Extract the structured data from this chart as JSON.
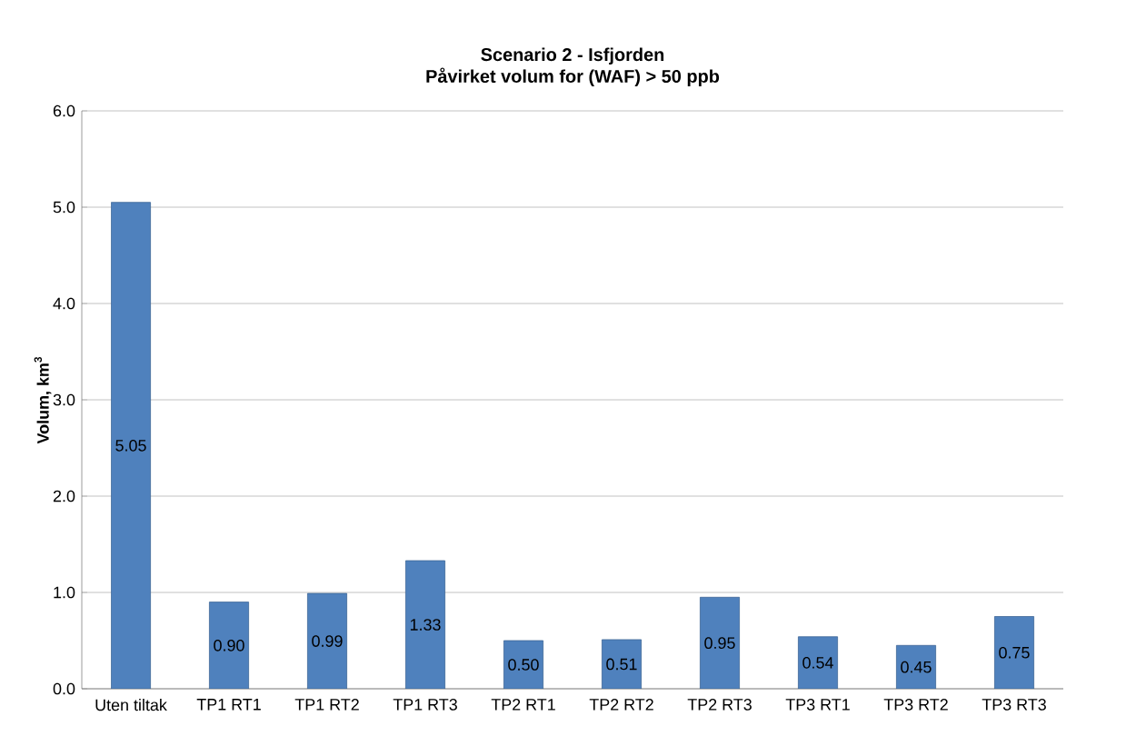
{
  "chart_data": {
    "type": "bar",
    "title": "Scenario 2 - Isfjorden",
    "subtitle": "Påvirket volum for (WAF) > 50 ppb",
    "ylabel": "Volum, km$^{3}$",
    "categories": [
      "Uten tiltak",
      "TP1 RT1",
      "TP1 RT2",
      "TP1 RT3",
      "TP2 RT1",
      "TP2 RT2",
      "TP2 RT3",
      "TP3 RT1",
      "TP3 RT2",
      "TP3 RT3"
    ],
    "values": [
      5.05,
      0.9,
      0.99,
      1.33,
      0.5,
      0.51,
      0.95,
      0.54,
      0.45,
      0.75
    ],
    "value_labels": [
      "5.05",
      "0.90",
      "0.99",
      "1.33",
      "0.50",
      "0.51",
      "0.95",
      "0.54",
      "0.45",
      "0.75"
    ],
    "color": "#4f81bd",
    "ylim": [
      0,
      6
    ],
    "yticks": [
      {
        "value": 0,
        "label": "0.0"
      },
      {
        "value": 1,
        "label": "1.0"
      },
      {
        "value": 2,
        "label": "2.0"
      },
      {
        "value": 3,
        "label": "3.0"
      },
      {
        "value": 4,
        "label": "4.0"
      },
      {
        "value": 5,
        "label": "5.0"
      },
      {
        "value": 6,
        "label": "6.0"
      }
    ],
    "grid": "y"
  }
}
